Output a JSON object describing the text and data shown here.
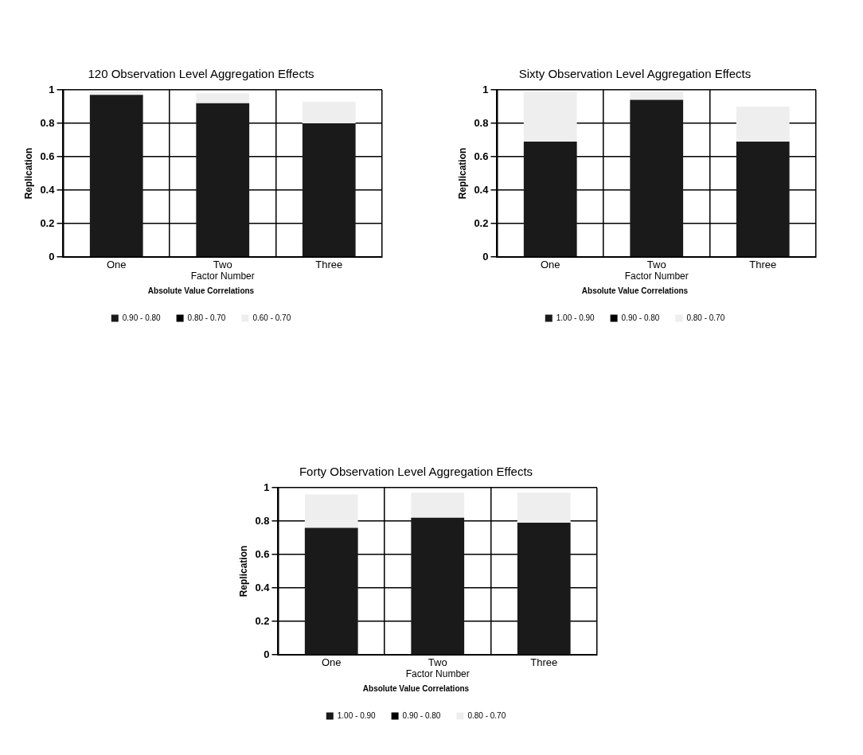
{
  "chart_data": [
    {
      "type": "bar",
      "title": "120 Observation Level Aggregation Effects",
      "xlabel": "Factor Number",
      "ylabel": "Replication",
      "legend_title": "Absolute Value Correlations",
      "categories": [
        "One",
        "Two",
        "Three"
      ],
      "stacked": true,
      "series": [
        {
          "name": "0.90 - 0.80",
          "color": "#1a1a1a",
          "values": [
            0.97,
            0.92,
            0.8
          ]
        },
        {
          "name": "0.80 - 0.70",
          "color": "#000000",
          "values": [
            0,
            0,
            0
          ]
        },
        {
          "name": "0.60 - 0.70",
          "color": "#eeeeee",
          "values": [
            0.02,
            0.06,
            0.13
          ]
        }
      ],
      "ylim": [
        0,
        1
      ],
      "yticks": [
        0,
        0.2,
        0.4,
        0.6,
        0.8,
        1
      ],
      "grid": true,
      "legend": "bottom"
    },
    {
      "type": "bar",
      "title": "Sixty Observation Level Aggregation Effects",
      "xlabel": "Factor Number",
      "ylabel": "Replication",
      "legend_title": "Absolute Value Correlations",
      "categories": [
        "One",
        "Two",
        "Three"
      ],
      "stacked": true,
      "series": [
        {
          "name": "1.00 - 0.90",
          "color": "#1a1a1a",
          "values": [
            0.69,
            0.94,
            0.69
          ]
        },
        {
          "name": "0.90 - 0.80",
          "color": "#000000",
          "values": [
            0,
            0,
            0
          ]
        },
        {
          "name": "0.80 - 0.70",
          "color": "#eeeeee",
          "values": [
            0.3,
            0.05,
            0.21
          ]
        }
      ],
      "ylim": [
        0,
        1
      ],
      "yticks": [
        0,
        0.2,
        0.4,
        0.6,
        0.8,
        1
      ],
      "grid": true,
      "legend": "bottom"
    },
    {
      "type": "bar",
      "title": "Forty Observation Level Aggregation Effects",
      "xlabel": "Factor Number",
      "ylabel": "Replication",
      "legend_title": "Absolute Value Correlations",
      "categories": [
        "One",
        "Two",
        "Three"
      ],
      "stacked": true,
      "series": [
        {
          "name": "1.00 - 0.90",
          "color": "#1a1a1a",
          "values": [
            0.76,
            0.82,
            0.79
          ]
        },
        {
          "name": "0.90 - 0.80",
          "color": "#000000",
          "values": [
            0,
            0,
            0
          ]
        },
        {
          "name": "0.80 - 0.70",
          "color": "#eeeeee",
          "values": [
            0.2,
            0.15,
            0.18
          ]
        }
      ],
      "ylim": [
        0,
        1
      ],
      "yticks": [
        0,
        0.2,
        0.4,
        0.6,
        0.8,
        1
      ],
      "grid": true,
      "legend": "bottom"
    }
  ]
}
